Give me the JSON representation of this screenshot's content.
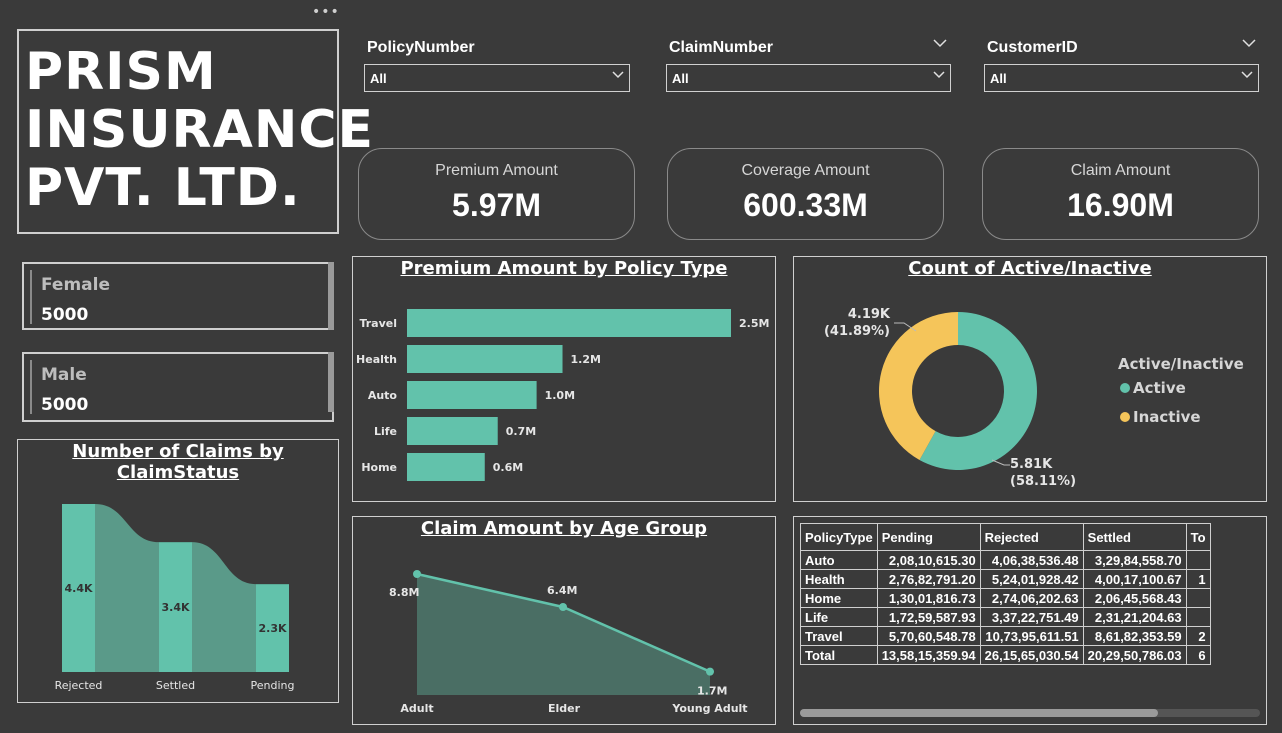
{
  "dots": "•••",
  "brand": {
    "title": "PRISM\nINSURANCE\nPVT. LTD."
  },
  "slicers": [
    {
      "label": "PolicyNumber",
      "value": "All"
    },
    {
      "label": "ClaimNumber",
      "value": "All"
    },
    {
      "label": "CustomerID",
      "value": "All"
    }
  ],
  "kpis": [
    {
      "label": "Premium Amount",
      "value": "5.97M"
    },
    {
      "label": "Coverage Amount",
      "value": "600.33M"
    },
    {
      "label": "Claim Amount",
      "value": "16.90M"
    }
  ],
  "gender_cards": [
    {
      "label": "Female",
      "value": "5000"
    },
    {
      "label": "Male",
      "value": "5000"
    }
  ],
  "colors": {
    "teal": "#62c2ab",
    "yellow": "#f5c55a",
    "ribbon": "#5a9a89",
    "area": "#4a6e64",
    "bg": "#3a3a3a"
  },
  "chart_data": [
    {
      "type": "bar",
      "title": "Premium Amount by Policy Type",
      "categories": [
        "Travel",
        "Health",
        "Auto",
        "Life",
        "Home"
      ],
      "values": [
        2.5,
        1.2,
        1.0,
        0.7,
        0.6
      ],
      "labels": [
        "2.5M",
        "1.2M",
        "1.0M",
        "0.7M",
        "0.6M"
      ],
      "xlim": [
        0,
        2.5
      ]
    },
    {
      "type": "pie",
      "title": "Count of Active/Inactive",
      "legend_title": "Active/Inactive",
      "categories": [
        "Active",
        "Inactive"
      ],
      "values": [
        5.81,
        4.19
      ],
      "labels": [
        [
          "5.81K",
          "(58.11%)"
        ],
        [
          "4.19K",
          "(41.89%)"
        ]
      ]
    },
    {
      "type": "bar",
      "title": "Number of Claims by ClaimStatus",
      "categories": [
        "Rejected",
        "Settled",
        "Pending"
      ],
      "values": [
        4.4,
        3.4,
        2.3
      ],
      "labels": [
        "4.4K",
        "3.4K",
        "2.3K"
      ],
      "ylim": [
        0,
        4.4
      ]
    },
    {
      "type": "area",
      "title": "Claim Amount by Age Group",
      "categories": [
        "Adult",
        "Elder",
        "Young Adult"
      ],
      "values": [
        8.8,
        6.4,
        1.7
      ],
      "labels": [
        "8.8M",
        "6.4M",
        "1.7M"
      ],
      "ylim": [
        0,
        8.8
      ]
    },
    {
      "type": "table",
      "columns": [
        "PolicyType",
        "Pending",
        "Rejected",
        "Settled",
        "To"
      ],
      "rows": [
        [
          "Auto",
          "2,08,10,615.30",
          "4,06,38,536.48",
          "3,29,84,558.70",
          ""
        ],
        [
          "Health",
          "2,76,82,791.20",
          "5,24,01,928.42",
          "4,00,17,100.67",
          "1"
        ],
        [
          "Home",
          "1,30,01,816.73",
          "2,74,06,202.63",
          "2,06,45,568.43",
          ""
        ],
        [
          "Life",
          "1,72,59,587.93",
          "3,37,22,751.49",
          "2,31,21,204.63",
          ""
        ],
        [
          "Travel",
          "5,70,60,548.78",
          "10,73,95,611.51",
          "8,61,82,353.59",
          "2"
        ],
        [
          "Total",
          "13,58,15,359.94",
          "26,15,65,030.54",
          "20,29,50,786.03",
          "6"
        ]
      ]
    }
  ]
}
